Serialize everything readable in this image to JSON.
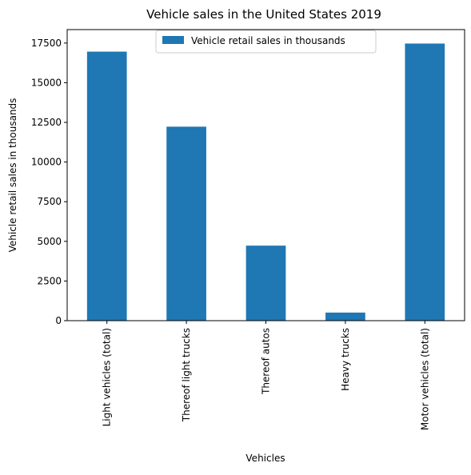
{
  "chart_data": {
    "type": "bar",
    "title": "Vehicle sales in the United States 2019",
    "xlabel": "Vehicles",
    "ylabel": "Vehicle retail sales in thousands",
    "categories": [
      "Light vehicles (total)",
      "Thereof light trucks",
      "Thereof autos",
      "Heavy trucks",
      "Motor vehicles (total)"
    ],
    "series": [
      {
        "name": "Vehicle retail sales in thousands",
        "values": [
          16960,
          12230,
          4730,
          510,
          17470
        ],
        "color": "#1f77b4"
      }
    ],
    "ylim": [
      0,
      18350
    ],
    "yticks": [
      0,
      2500,
      5000,
      7500,
      10000,
      12500,
      15000,
      17500
    ],
    "grid": false,
    "legend": "top-center"
  }
}
